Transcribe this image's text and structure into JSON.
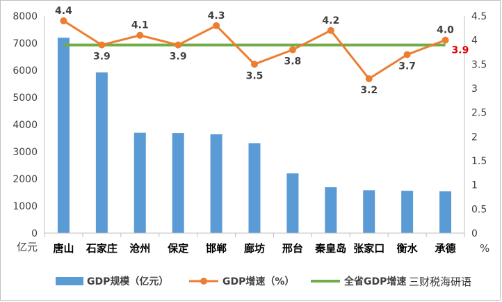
{
  "chart_data": {
    "type": "bar",
    "categories": [
      "唐山",
      "石家庄",
      "沧州",
      "保定",
      "邯郸",
      "廊坊",
      "邢台",
      "秦皇岛",
      "张家口",
      "衡水",
      "承德"
    ],
    "series": [
      {
        "name": "GDP规模（亿元）",
        "type": "bar",
        "axis": "left",
        "color": "#5b9bd5",
        "values": [
          7200,
          5920,
          3700,
          3690,
          3640,
          3310,
          2200,
          1690,
          1580,
          1560,
          1540
        ]
      },
      {
        "name": "GDP增速（%）",
        "type": "line",
        "axis": "right",
        "color": "#ed7d31",
        "values": [
          4.4,
          3.9,
          4.1,
          3.9,
          4.3,
          3.5,
          3.8,
          4.2,
          3.2,
          3.7,
          4.0
        ],
        "labels": [
          "4.4",
          "3.9",
          "4.1",
          "3.9",
          "4.3",
          "3.5",
          "3.8",
          "4.2",
          "3.2",
          "3.7",
          "4.0"
        ]
      },
      {
        "name": "全省GDP增速",
        "type": "line",
        "axis": "right",
        "color": "#70ad47",
        "values": [
          3.9,
          3.9,
          3.9,
          3.9,
          3.9,
          3.9,
          3.9,
          3.9,
          3.9,
          3.9,
          3.9
        ],
        "end_label": "3.9",
        "end_label_color": "#e00000"
      }
    ],
    "left_axis": {
      "unit": "亿元",
      "ylim": [
        0,
        8000
      ],
      "ticks": [
        "0",
        "1000",
        "2000",
        "3000",
        "4000",
        "5000",
        "6000",
        "7000",
        "8000"
      ]
    },
    "right_axis": {
      "unit": "%",
      "ylim": [
        0,
        4.5
      ],
      "ticks": [
        "0",
        "0.5",
        "1",
        "1.5",
        "2",
        "2.5",
        "3",
        "3.5",
        "4",
        "4.5"
      ]
    },
    "grid": false,
    "legend_position": "bottom"
  },
  "watermark": "三财税海研语"
}
